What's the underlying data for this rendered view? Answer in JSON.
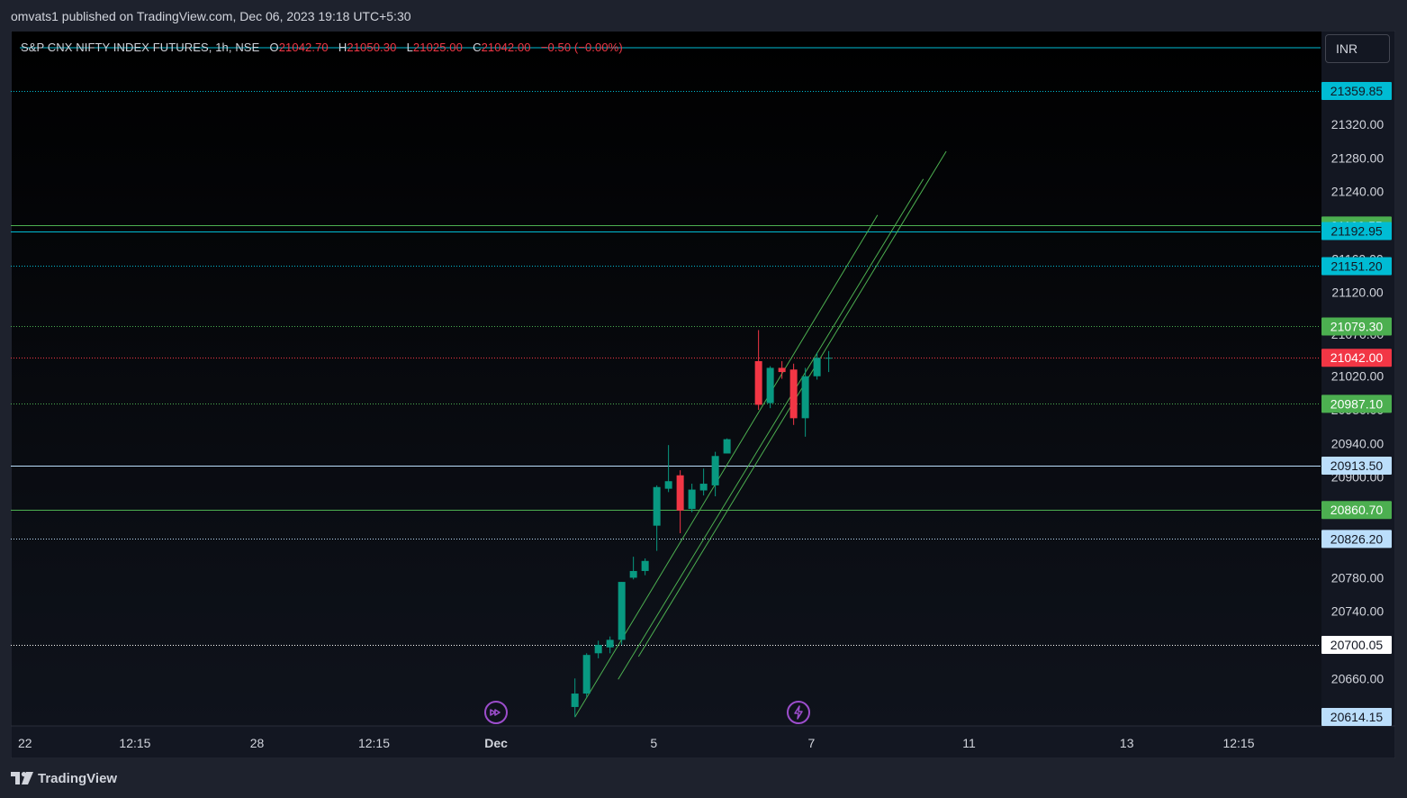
{
  "header": {
    "publisher": "omvats1 published on TradingView.com, Dec 06, 2023 19:18 UTC+5:30"
  },
  "symbol": {
    "name": "S&P CNX NIFTY INDEX FUTURES, 1h, NSE",
    "open_label": "O",
    "open": "21042.70",
    "high_label": "H",
    "high": "21050.30",
    "low_label": "L",
    "low": "21025.00",
    "close_label": "C",
    "close": "21042.00",
    "change": "−0.50 (−0.00%)"
  },
  "currency": "INR",
  "footer": {
    "brand": "TradingView",
    "logo_icon": "tradingview-logo-icon"
  },
  "colors": {
    "up": "#089981",
    "down": "#f23645",
    "background": "#131722",
    "panel": "#1e222d"
  },
  "icons": {
    "replay": "replay-forward-icon",
    "flash": "flash-icon"
  },
  "chart_data": {
    "type": "candlestick",
    "ylim": [
      20614.15,
      21359.85
    ],
    "y_ticks": [
      "21320.00",
      "21280.00",
      "21240.00",
      "21160.00",
      "21120.00",
      "21070.00",
      "21020.00",
      "20980.00",
      "20940.00",
      "20900.00",
      "20780.00",
      "20740.00",
      "20660.00"
    ],
    "x_ticks": [
      {
        "label": "22",
        "pos": 0.0
      },
      {
        "label": "12:15",
        "pos": 2.3
      },
      {
        "label": "28",
        "pos": 4.7
      },
      {
        "label": "12:15",
        "pos": 7.0
      },
      {
        "label": "Dec",
        "pos": 9.4,
        "bold": true
      },
      {
        "label": "5",
        "pos": 12.5
      },
      {
        "label": "7",
        "pos": 15.6
      },
      {
        "label": "11",
        "pos": 18.7
      },
      {
        "label": "13",
        "pos": 21.8
      },
      {
        "label": "12:15",
        "pos": 24.0
      }
    ],
    "horizontal_levels": [
      {
        "value": "21359.85",
        "color": "#00bcd4",
        "style": "dotted",
        "text_color": "#131722"
      },
      {
        "value": "21199.55",
        "color": "#4caf50",
        "style": "solid",
        "text_color": "#ffffff"
      },
      {
        "value": "21192.95",
        "color": "#00bcd4",
        "style": "solid",
        "text_color": "#131722"
      },
      {
        "value": "21151.20",
        "color": "#00bcd4",
        "style": "dotted",
        "text_color": "#131722"
      },
      {
        "value": "21079.30",
        "color": "#4caf50",
        "style": "dotted",
        "text_color": "#ffffff"
      },
      {
        "value": "21042.00",
        "color": "#f23645",
        "style": "dotted",
        "text_color": "#ffffff"
      },
      {
        "value": "20987.10",
        "color": "#4caf50",
        "style": "dotted",
        "text_color": "#ffffff"
      },
      {
        "value": "20913.50",
        "color": "#bbdefb",
        "style": "solid",
        "text_color": "#131722"
      },
      {
        "value": "20860.70",
        "color": "#4caf50",
        "style": "solid",
        "text_color": "#ffffff"
      },
      {
        "value": "20826.20",
        "color": "#bbdefb",
        "style": "dotted",
        "text_color": "#131722"
      },
      {
        "value": "20700.05",
        "color": "#ffffff",
        "style": "dotted",
        "text_color": "#131722"
      },
      {
        "value": "20614.15",
        "color": "#bbdefb",
        "style": "none",
        "text_color": "#131722"
      }
    ],
    "candles": [
      {
        "t": 10.95,
        "o": 20626,
        "h": 20660,
        "l": 20614,
        "c": 20642
      },
      {
        "t": 11.18,
        "o": 20642,
        "h": 20690,
        "l": 20638,
        "c": 20688
      },
      {
        "t": 11.41,
        "o": 20690,
        "h": 20705,
        "l": 20684,
        "c": 20700
      },
      {
        "t": 11.64,
        "o": 20697,
        "h": 20710,
        "l": 20690,
        "c": 20706
      },
      {
        "t": 11.87,
        "o": 20706,
        "h": 20775,
        "l": 20700,
        "c": 20775
      },
      {
        "t": 12.1,
        "o": 20780,
        "h": 20805,
        "l": 20778,
        "c": 20788
      },
      {
        "t": 12.33,
        "o": 20788,
        "h": 20803,
        "l": 20783,
        "c": 20800
      },
      {
        "t": 12.56,
        "o": 20842,
        "h": 20890,
        "l": 20812,
        "c": 20888
      },
      {
        "t": 12.79,
        "o": 20886,
        "h": 20938,
        "l": 20882,
        "c": 20895
      },
      {
        "t": 13.02,
        "o": 20902,
        "h": 20908,
        "l": 20833,
        "c": 20860
      },
      {
        "t": 13.25,
        "o": 20862,
        "h": 20892,
        "l": 20858,
        "c": 20885
      },
      {
        "t": 13.48,
        "o": 20884,
        "h": 20910,
        "l": 20878,
        "c": 20892
      },
      {
        "t": 13.71,
        "o": 20890,
        "h": 20930,
        "l": 20877,
        "c": 20925
      },
      {
        "t": 13.94,
        "o": 20928,
        "h": 20946,
        "l": 20928,
        "c": 20945
      },
      {
        "t": 14.56,
        "o": 21038,
        "h": 21075,
        "l": 20980,
        "c": 20986
      },
      {
        "t": 14.79,
        "o": 20988,
        "h": 21032,
        "l": 20982,
        "c": 21030
      },
      {
        "t": 15.02,
        "o": 21030,
        "h": 21038,
        "l": 21017,
        "c": 21025
      },
      {
        "t": 15.25,
        "o": 21028,
        "h": 21035,
        "l": 20962,
        "c": 20970
      },
      {
        "t": 15.48,
        "o": 20970,
        "h": 21030,
        "l": 20948,
        "c": 21020
      },
      {
        "t": 15.71,
        "o": 21020,
        "h": 21048,
        "l": 21016,
        "c": 21042
      },
      {
        "t": 15.94,
        "o": 21042,
        "h": 21050,
        "l": 21025,
        "c": 21042
      }
    ],
    "trend_lines": [
      {
        "t1": 10.95,
        "v1": 20614,
        "t2": 16.9,
        "v2": 21212
      },
      {
        "t1": 11.8,
        "v1": 20659,
        "t2": 17.8,
        "v2": 21255
      },
      {
        "t1": 12.2,
        "v1": 20686,
        "t2": 18.25,
        "v2": 21288
      }
    ],
    "markers": [
      {
        "name": "replay-forward-icon",
        "t": 9.4
      },
      {
        "name": "flash-icon",
        "t": 15.35
      }
    ]
  }
}
